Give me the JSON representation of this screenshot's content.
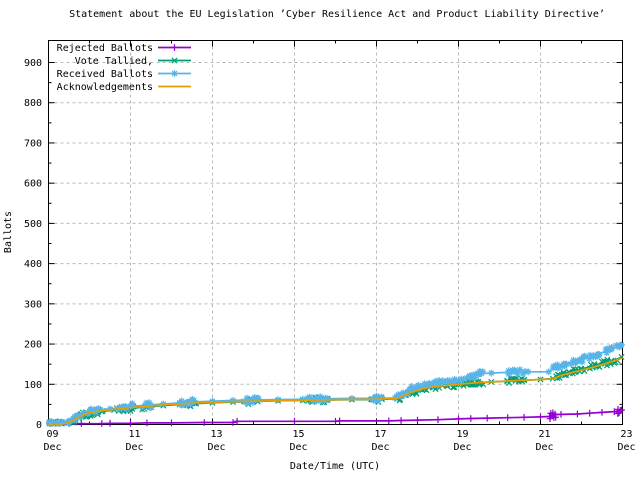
{
  "title": "Statement about the EU Legislation ’Cyber Resilience Act and Product Liability Directive’",
  "colors": {
    "background": "#ffffff",
    "border": "#000000",
    "grid": "#b9b9b9",
    "rejected": "#9400d3",
    "tallied": "#009e73",
    "received": "#56b4e9",
    "acknowledgements": "#e69f00"
  },
  "chart_data": {
    "type": "line",
    "title": "Statement about the EU Legislation ’Cyber Resilience Act and Product Liability Directive’",
    "xlabel": "Date/Time (UTC)",
    "ylabel": "Ballots",
    "grid": true,
    "legend_position": "top-left",
    "ylim": [
      0,
      950
    ],
    "y_ticks": [
      0,
      100,
      200,
      300,
      400,
      500,
      600,
      700,
      800,
      900
    ],
    "y_minor_ticks": [
      50,
      150,
      250,
      350,
      450,
      550,
      650,
      750,
      850
    ],
    "x_ticks": [
      {
        "day": 9,
        "label_line1": "09",
        "label_line2": "Dec"
      },
      {
        "day": 11,
        "label_line1": "11",
        "label_line2": "Dec"
      },
      {
        "day": 13,
        "label_line1": "13",
        "label_line2": "Dec"
      },
      {
        "day": 15,
        "label_line1": "15",
        "label_line2": "Dec"
      },
      {
        "day": 17,
        "label_line1": "17",
        "label_line2": "Dec"
      },
      {
        "day": 19,
        "label_line1": "19",
        "label_line2": "Dec"
      },
      {
        "day": 21,
        "label_line1": "21",
        "label_line2": "Dec"
      },
      {
        "day": 23,
        "label_line1": "23",
        "label_line2": "Dec"
      }
    ],
    "x_minor_tick_days": [
      10,
      12,
      14,
      16,
      18,
      20,
      22
    ],
    "xlim_days": [
      9,
      23
    ],
    "series": [
      {
        "name": "Rejected Ballots",
        "color": "#9400d3",
        "marker": "plus",
        "points": [
          [
            9.0,
            0
          ],
          [
            9.5,
            1
          ],
          [
            9.8,
            2
          ],
          [
            10.3,
            2
          ],
          [
            10.5,
            3
          ],
          [
            11.0,
            3
          ],
          [
            11.4,
            4
          ],
          [
            12.0,
            4
          ],
          [
            12.8,
            5
          ],
          [
            13.5,
            5
          ],
          [
            13.6,
            8
          ],
          [
            15.0,
            8
          ],
          [
            16.0,
            8
          ],
          [
            16.1,
            9
          ],
          [
            17.3,
            9
          ],
          [
            17.6,
            10
          ],
          [
            18.0,
            11
          ],
          [
            18.5,
            12
          ],
          [
            19.0,
            14
          ],
          [
            19.3,
            15
          ],
          [
            19.7,
            16
          ],
          [
            20.2,
            17
          ],
          [
            20.6,
            18
          ],
          [
            21.0,
            19
          ],
          [
            21.22,
            20
          ],
          [
            21.3,
            24
          ],
          [
            21.5,
            25
          ],
          [
            21.9,
            26
          ],
          [
            22.2,
            28
          ],
          [
            22.5,
            30
          ],
          [
            22.8,
            32
          ],
          [
            23.0,
            36
          ]
        ],
        "clusters": [
          [
            21.22,
            21.45
          ],
          [
            22.85,
            23.0
          ]
        ]
      },
      {
        "name": "Vote Tallied,",
        "color": "#009e73",
        "marker": "cross",
        "points": [
          [
            9.0,
            0
          ],
          [
            9.3,
            2
          ],
          [
            9.5,
            5
          ],
          [
            9.65,
            15
          ],
          [
            9.8,
            22
          ],
          [
            10.0,
            28
          ],
          [
            10.3,
            32
          ],
          [
            10.6,
            36
          ],
          [
            11.0,
            40
          ],
          [
            11.4,
            44
          ],
          [
            11.8,
            47
          ],
          [
            12.2,
            50
          ],
          [
            12.6,
            52
          ],
          [
            13.0,
            54
          ],
          [
            13.5,
            56
          ],
          [
            14.0,
            57
          ],
          [
            14.6,
            59
          ],
          [
            15.2,
            60
          ],
          [
            15.8,
            61
          ],
          [
            16.4,
            62
          ],
          [
            17.0,
            62
          ],
          [
            17.5,
            64
          ],
          [
            17.7,
            73
          ],
          [
            17.9,
            80
          ],
          [
            18.1,
            87
          ],
          [
            18.4,
            93
          ],
          [
            18.7,
            97
          ],
          [
            19.0,
            100
          ],
          [
            19.4,
            103
          ],
          [
            19.8,
            106
          ],
          [
            20.2,
            108
          ],
          [
            20.6,
            110
          ],
          [
            21.0,
            112
          ],
          [
            21.3,
            114
          ],
          [
            21.45,
            123
          ],
          [
            21.7,
            130
          ],
          [
            22.0,
            138
          ],
          [
            22.4,
            148
          ],
          [
            22.7,
            156
          ],
          [
            23.0,
            168
          ]
        ],
        "clusters": [
          [
            9.0,
            9.35
          ],
          [
            9.55,
            10.3
          ],
          [
            10.7,
            11.1
          ],
          [
            11.3,
            11.55
          ],
          [
            12.25,
            12.6
          ],
          [
            13.8,
            14.1
          ],
          [
            15.35,
            15.8
          ],
          [
            16.9,
            17.15
          ],
          [
            17.55,
            19.0
          ],
          [
            19.1,
            19.6
          ],
          [
            20.2,
            20.6
          ],
          [
            21.35,
            22.1
          ],
          [
            22.2,
            23.0
          ]
        ]
      },
      {
        "name": "Received Ballots",
        "color": "#56b4e9",
        "marker": "star",
        "points": [
          [
            9.0,
            1
          ],
          [
            9.2,
            3
          ],
          [
            9.4,
            5
          ],
          [
            9.5,
            8
          ],
          [
            9.6,
            14
          ],
          [
            9.7,
            21
          ],
          [
            9.85,
            28
          ],
          [
            10.0,
            33
          ],
          [
            10.2,
            36
          ],
          [
            10.5,
            39
          ],
          [
            10.8,
            43
          ],
          [
            11.0,
            45
          ],
          [
            11.4,
            48
          ],
          [
            11.8,
            51
          ],
          [
            12.2,
            54
          ],
          [
            12.5,
            56
          ],
          [
            13.0,
            58
          ],
          [
            13.5,
            60
          ],
          [
            14.0,
            61
          ],
          [
            14.6,
            62
          ],
          [
            15.2,
            63
          ],
          [
            15.7,
            64
          ],
          [
            16.4,
            65
          ],
          [
            17.0,
            65
          ],
          [
            17.45,
            66
          ],
          [
            17.6,
            75
          ],
          [
            17.8,
            86
          ],
          [
            18.0,
            94
          ],
          [
            18.3,
            100
          ],
          [
            18.6,
            104
          ],
          [
            19.0,
            110
          ],
          [
            19.3,
            120
          ],
          [
            19.5,
            126
          ],
          [
            19.8,
            128
          ],
          [
            20.3,
            130
          ],
          [
            20.7,
            131
          ],
          [
            21.2,
            131
          ],
          [
            21.35,
            143
          ],
          [
            21.6,
            150
          ],
          [
            22.0,
            162
          ],
          [
            22.4,
            175
          ],
          [
            22.7,
            186
          ],
          [
            23.0,
            198
          ]
        ],
        "clusters": [
          [
            9.0,
            9.35
          ],
          [
            9.5,
            10.25
          ],
          [
            10.7,
            11.1
          ],
          [
            11.3,
            11.55
          ],
          [
            12.25,
            12.6
          ],
          [
            13.8,
            14.1
          ],
          [
            15.35,
            15.8
          ],
          [
            16.9,
            17.15
          ],
          [
            17.5,
            18.95
          ],
          [
            19.1,
            19.6
          ],
          [
            20.2,
            20.6
          ],
          [
            21.3,
            22.1
          ],
          [
            22.2,
            23.0
          ]
        ]
      },
      {
        "name": "Acknowledgements",
        "color": "#e69f00",
        "marker": "none",
        "points": [
          [
            9.0,
            0
          ],
          [
            9.4,
            2
          ],
          [
            9.6,
            10
          ],
          [
            9.8,
            22
          ],
          [
            10.0,
            30
          ],
          [
            10.4,
            35
          ],
          [
            10.8,
            40
          ],
          [
            11.2,
            44
          ],
          [
            11.6,
            47
          ],
          [
            12.0,
            50
          ],
          [
            12.5,
            53
          ],
          [
            13.0,
            55
          ],
          [
            13.5,
            57
          ],
          [
            14.0,
            58
          ],
          [
            15.0,
            60
          ],
          [
            16.0,
            62
          ],
          [
            17.0,
            63
          ],
          [
            17.5,
            65
          ],
          [
            17.8,
            78
          ],
          [
            18.1,
            88
          ],
          [
            18.4,
            94
          ],
          [
            18.8,
            98
          ],
          [
            19.2,
            102
          ],
          [
            19.6,
            105
          ],
          [
            20.0,
            107
          ],
          [
            20.5,
            110
          ],
          [
            21.0,
            112
          ],
          [
            21.3,
            113
          ],
          [
            21.5,
            122
          ],
          [
            21.8,
            130
          ],
          [
            22.2,
            140
          ],
          [
            22.6,
            152
          ],
          [
            23.0,
            165
          ]
        ],
        "clusters": []
      }
    ]
  }
}
